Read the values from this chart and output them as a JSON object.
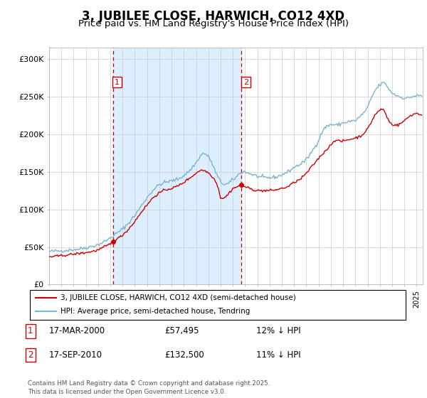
{
  "title": "3, JUBILEE CLOSE, HARWICH, CO12 4XD",
  "subtitle": "Price paid vs. HM Land Registry's House Price Index (HPI)",
  "title_fontsize": 12,
  "subtitle_fontsize": 9.5,
  "ylabel_ticks": [
    "£0",
    "£50K",
    "£100K",
    "£150K",
    "£200K",
    "£250K",
    "£300K"
  ],
  "ytick_vals": [
    0,
    50000,
    100000,
    150000,
    200000,
    250000,
    300000
  ],
  "ylim": [
    0,
    315000
  ],
  "xlim_start": 1995.0,
  "xlim_end": 2025.5,
  "sale1_x": 2000.208,
  "sale1_y": 57495,
  "sale2_x": 2010.708,
  "sale2_y": 132500,
  "vline1_x": 2000.208,
  "vline2_x": 2010.708,
  "shade_start": 2000.208,
  "shade_end": 2010.708,
  "shade_color": "#ddeeff",
  "hpi_color": "#7ab3d4",
  "price_color": "#cc0000",
  "grid_color": "#cccccc",
  "background_color": "#ffffff",
  "legend_label_price": "3, JUBILEE CLOSE, HARWICH, CO12 4XD (semi-detached house)",
  "legend_label_hpi": "HPI: Average price, semi-detached house, Tendring",
  "footnote": "Contains HM Land Registry data © Crown copyright and database right 2025.\nThis data is licensed under the Open Government Licence v3.0.",
  "table_row1": [
    "1",
    "17-MAR-2000",
    "£57,495",
    "12% ↓ HPI"
  ],
  "table_row2": [
    "2",
    "17-SEP-2010",
    "£132,500",
    "11% ↓ HPI"
  ],
  "hpi_waypoints_x": [
    1995.0,
    1996.0,
    1997.0,
    1997.5,
    1998.0,
    1998.5,
    1999.0,
    1999.5,
    2000.0,
    2000.5,
    2001.0,
    2001.5,
    2002.0,
    2002.5,
    2003.0,
    2003.5,
    2004.0,
    2004.5,
    2005.0,
    2005.5,
    2006.0,
    2006.5,
    2007.0,
    2007.3,
    2007.6,
    2007.9,
    2008.2,
    2008.5,
    2008.8,
    2009.0,
    2009.3,
    2009.6,
    2009.9,
    2010.2,
    2010.5,
    2010.8,
    2011.0,
    2011.5,
    2012.0,
    2012.5,
    2013.0,
    2013.5,
    2014.0,
    2014.5,
    2015.0,
    2015.5,
    2016.0,
    2016.5,
    2017.0,
    2017.3,
    2017.6,
    2018.0,
    2018.5,
    2019.0,
    2019.5,
    2020.0,
    2020.5,
    2021.0,
    2021.3,
    2021.6,
    2021.9,
    2022.2,
    2022.4,
    2022.6,
    2022.8,
    2023.0,
    2023.3,
    2023.6,
    2024.0,
    2024.3,
    2024.6,
    2025.0,
    2025.3
  ],
  "hpi_waypoints_y": [
    44000,
    45000,
    46500,
    47500,
    49000,
    51000,
    53000,
    57000,
    62000,
    68000,
    74000,
    82000,
    92000,
    104000,
    116000,
    126000,
    133000,
    136000,
    138000,
    140000,
    145000,
    152000,
    162000,
    170000,
    175000,
    172000,
    165000,
    153000,
    142000,
    137000,
    133000,
    134000,
    138000,
    142000,
    147000,
    150000,
    150000,
    147000,
    144000,
    142000,
    142000,
    143000,
    146000,
    150000,
    156000,
    160000,
    166000,
    178000,
    192000,
    204000,
    210000,
    213000,
    212000,
    215000,
    217000,
    218000,
    225000,
    235000,
    248000,
    258000,
    264000,
    268000,
    268000,
    264000,
    258000,
    255000,
    252000,
    250000,
    248000,
    248000,
    250000,
    251000,
    251000
  ],
  "price_waypoints_x": [
    1995.0,
    1995.5,
    1996.0,
    1996.5,
    1997.0,
    1997.5,
    1998.0,
    1998.5,
    1999.0,
    1999.5,
    2000.0,
    2000.208,
    2000.5,
    2001.0,
    2001.5,
    2002.0,
    2002.5,
    2003.0,
    2003.5,
    2004.0,
    2004.5,
    2005.0,
    2005.5,
    2006.0,
    2006.5,
    2007.0,
    2007.3,
    2007.6,
    2007.9,
    2008.2,
    2008.5,
    2008.8,
    2009.0,
    2009.3,
    2009.6,
    2009.9,
    2010.0,
    2010.5,
    2010.708,
    2011.0,
    2011.5,
    2012.0,
    2012.5,
    2013.0,
    2013.5,
    2014.0,
    2014.5,
    2015.0,
    2015.5,
    2016.0,
    2016.5,
    2017.0,
    2017.5,
    2017.8,
    2018.0,
    2018.3,
    2018.5,
    2018.8,
    2019.0,
    2019.5,
    2020.0,
    2020.5,
    2021.0,
    2021.3,
    2021.6,
    2022.0,
    2022.2,
    2022.4,
    2022.6,
    2022.8,
    2023.0,
    2023.5,
    2024.0,
    2024.5,
    2025.0,
    2025.3
  ],
  "price_waypoints_y": [
    37000,
    37500,
    38500,
    39500,
    40500,
    41500,
    42500,
    44000,
    46000,
    50000,
    54000,
    57495,
    60000,
    66000,
    74000,
    84000,
    96000,
    106000,
    116000,
    122000,
    126000,
    128000,
    131000,
    136000,
    142000,
    148000,
    152000,
    152000,
    150000,
    146000,
    140000,
    130000,
    115000,
    115000,
    120000,
    126000,
    128000,
    131000,
    132500,
    130000,
    127000,
    125000,
    125000,
    125000,
    126000,
    128000,
    130000,
    136000,
    140000,
    148000,
    158000,
    168000,
    177000,
    182000,
    186000,
    192000,
    192000,
    190000,
    191000,
    193000,
    195000,
    198000,
    207000,
    216000,
    226000,
    232000,
    234000,
    230000,
    222000,
    216000,
    213000,
    212000,
    218000,
    225000,
    228000,
    226000
  ]
}
